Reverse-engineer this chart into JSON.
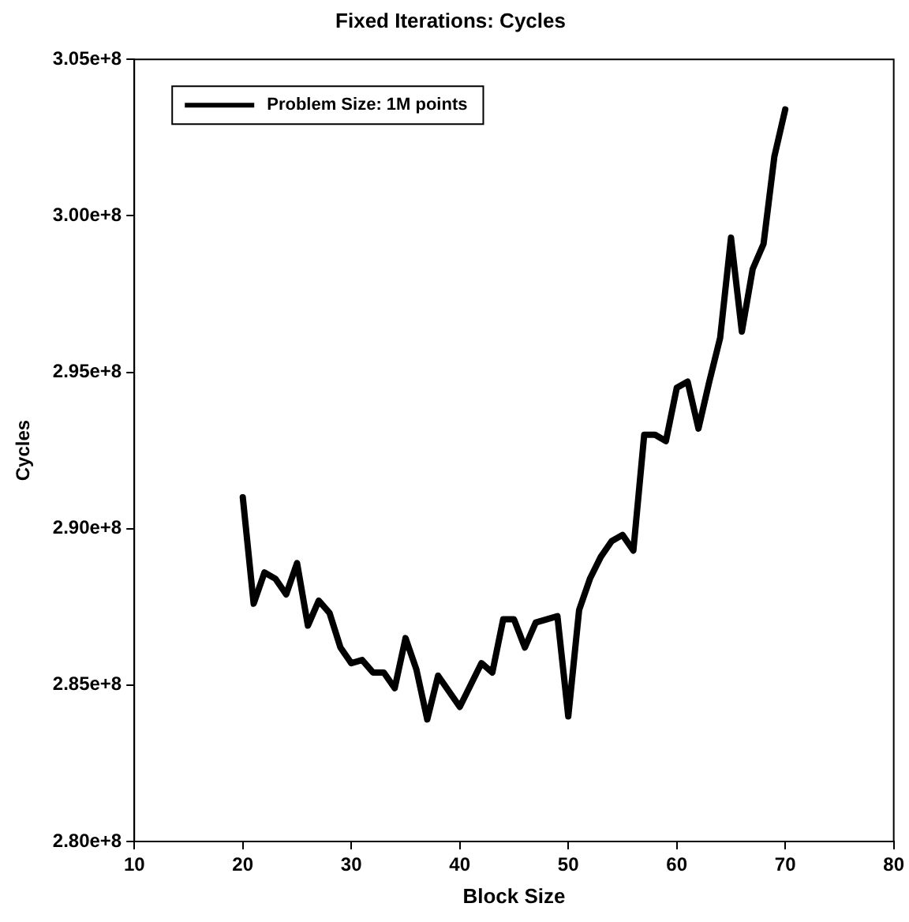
{
  "chart_data": {
    "type": "line",
    "title": "Fixed Iterations: Cycles",
    "xlabel": "Block Size",
    "ylabel": "Cycles",
    "x": [
      20,
      21,
      22,
      23,
      24,
      25,
      26,
      27,
      28,
      29,
      30,
      31,
      32,
      33,
      34,
      35,
      36,
      37,
      38,
      39,
      40,
      41,
      42,
      43,
      44,
      45,
      46,
      47,
      48,
      49,
      50,
      51,
      52,
      53,
      54,
      55,
      56,
      57,
      58,
      59,
      60,
      61,
      62,
      63,
      64,
      65,
      66,
      67,
      68,
      69,
      70
    ],
    "series": [
      {
        "name": "Problem Size: 1M points",
        "color": "#000000",
        "values": [
          291000000,
          287600000,
          288600000,
          288400000,
          287900000,
          288900000,
          286900000,
          287700000,
          287300000,
          286200000,
          285700000,
          285800000,
          285400000,
          285400000,
          284900000,
          286500000,
          285500000,
          283900000,
          285300000,
          284800000,
          284300000,
          285000000,
          285700000,
          285400000,
          287100000,
          287100000,
          286200000,
          287000000,
          287100000,
          287200000,
          284000000,
          287400000,
          288400000,
          289100000,
          289600000,
          289800000,
          289300000,
          293000000,
          293000000,
          292800000,
          294500000,
          294700000,
          293200000,
          294700000,
          296100000,
          299300000,
          296300000,
          298300000,
          299100000,
          301900000,
          303400000
        ]
      }
    ],
    "xlim": [
      10,
      80
    ],
    "xticks": [
      10,
      20,
      30,
      40,
      50,
      60,
      70,
      80
    ],
    "ylim": [
      280000000,
      305000000
    ],
    "yticks": [
      {
        "value": 280000000,
        "label": "2.80e+8"
      },
      {
        "value": 285000000,
        "label": "2.85e+8"
      },
      {
        "value": 290000000,
        "label": "2.90e+8"
      },
      {
        "value": 295000000,
        "label": "2.95e+8"
      },
      {
        "value": 300000000,
        "label": "3.00e+8"
      },
      {
        "value": 305000000,
        "label": "3.05e+8"
      }
    ],
    "legend": "top left",
    "marker": "none",
    "line_style": "solid"
  }
}
